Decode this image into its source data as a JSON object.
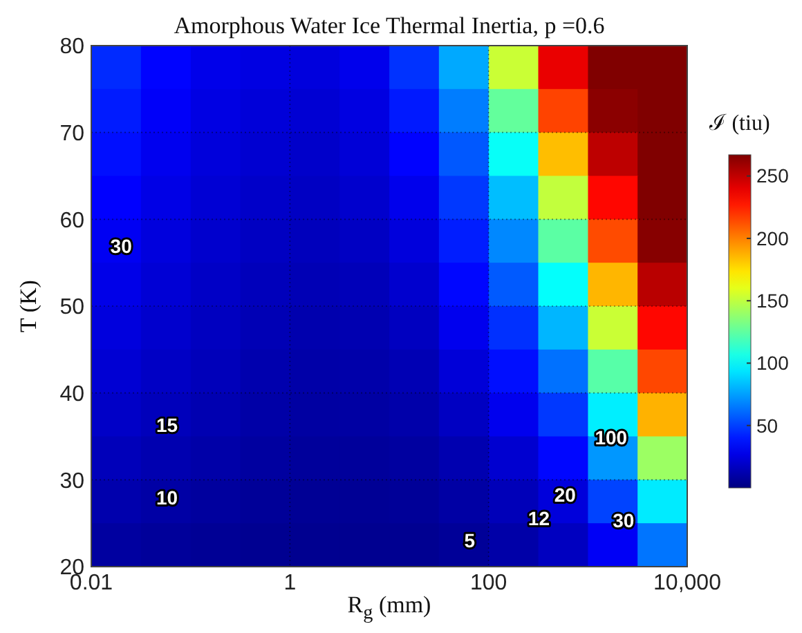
{
  "chart_data": {
    "type": "scatter",
    "title": "Amorphous Water Ice Thermal Inertia, p =0.6",
    "xlabel": "R$_{g}$ (mm)",
    "ylabel": "T (K)",
    "clabel": "ℐ (tiu)",
    "log": "x",
    "xlim": [
      0.01,
      10000
    ],
    "xticks": [
      0.01,
      1,
      100,
      {
        "value": 10000,
        "label": "10,000"
      }
    ],
    "ylim": [
      20,
      80
    ],
    "yticks": [
      20,
      30,
      40,
      50,
      60,
      70,
      80
    ],
    "grid": true,
    "marker": "square",
    "clim": [
      0,
      267
    ],
    "cticks": [
      50,
      100,
      150,
      200,
      250
    ],
    "annotations": [
      "30",
      "15",
      "10",
      "5",
      "12",
      "20",
      "30",
      "100"
    ],
    "x": [
      0.0178,
      0.0562,
      0.178,
      0.562,
      1.78,
      5.62,
      17.8,
      56.2,
      178,
      562,
      1780,
      5620,
      0.0178,
      0.0562,
      0.178,
      0.562,
      1.78,
      5.62,
      17.8,
      56.2,
      178,
      562,
      1780,
      5620,
      0.0178,
      0.0562,
      0.178,
      0.562,
      1.78,
      5.62,
      17.8,
      56.2,
      178,
      562,
      1780,
      5620,
      0.0178,
      0.0562,
      0.178,
      0.562,
      1.78,
      5.62,
      17.8,
      56.2,
      178,
      562,
      1780,
      5620,
      0.0178,
      0.0562,
      0.178,
      0.562,
      1.78,
      5.62,
      17.8,
      56.2,
      178,
      562,
      1780,
      5620,
      0.0178,
      0.0562,
      0.178,
      0.562,
      1.78,
      5.62,
      17.8,
      56.2,
      178,
      562,
      1780,
      5620,
      0.0178,
      0.0562,
      0.178,
      0.562,
      1.78,
      5.62,
      17.8,
      56.2,
      178,
      562,
      1780,
      5620,
      0.0178,
      0.0562,
      0.178,
      0.562,
      1.78,
      5.62,
      17.8,
      56.2,
      178,
      562,
      1780,
      5620,
      0.0178,
      0.0562,
      0.178,
      0.562,
      1.78,
      5.62,
      17.8,
      56.2,
      178,
      562,
      1780,
      5620,
      0.0178,
      0.0562,
      0.178,
      0.562,
      1.78,
      5.62,
      17.8,
      56.2,
      178,
      562,
      1780,
      5620,
      0.0178,
      0.0562,
      0.178,
      0.562,
      1.78,
      5.62,
      17.8,
      56.2,
      178,
      562,
      1780,
      5620,
      0.0178,
      0.0562,
      0.178,
      0.562,
      1.78,
      5.62,
      17.8,
      56.2,
      178,
      562,
      1780,
      5620
    ],
    "values": [
      77.5,
      77.5,
      77.5,
      77.5,
      77.5,
      77.5,
      77.5,
      77.5,
      77.5,
      77.5,
      77.5,
      77.5,
      72.5,
      72.5,
      72.5,
      72.5,
      72.5,
      72.5,
      72.5,
      72.5,
      72.5,
      72.5,
      72.5,
      72.5,
      67.5,
      67.5,
      67.5,
      67.5,
      67.5,
      67.5,
      67.5,
      67.5,
      67.5,
      67.5,
      67.5,
      67.5,
      62.5,
      62.5,
      62.5,
      62.5,
      62.5,
      62.5,
      62.5,
      62.5,
      62.5,
      62.5,
      62.5,
      62.5,
      57.5,
      57.5,
      57.5,
      57.5,
      57.5,
      57.5,
      57.5,
      57.5,
      57.5,
      57.5,
      57.5,
      57.5,
      52.5,
      52.5,
      52.5,
      52.5,
      52.5,
      52.5,
      52.5,
      52.5,
      52.5,
      52.5,
      52.5,
      52.5,
      47.5,
      47.5,
      47.5,
      47.5,
      47.5,
      47.5,
      47.5,
      47.5,
      47.5,
      47.5,
      47.5,
      47.5,
      42.5,
      42.5,
      42.5,
      42.5,
      42.5,
      42.5,
      42.5,
      42.5,
      42.5,
      42.5,
      42.5,
      42.5,
      37.5,
      37.5,
      37.5,
      37.5,
      37.5,
      37.5,
      37.5,
      37.5,
      37.5,
      37.5,
      37.5,
      37.5,
      32.5,
      32.5,
      32.5,
      32.5,
      32.5,
      32.5,
      32.5,
      32.5,
      32.5,
      32.5,
      32.5,
      32.5,
      27.5,
      27.5,
      27.5,
      27.5,
      27.5,
      27.5,
      27.5,
      27.5,
      27.5,
      27.5,
      27.5,
      27.5,
      22.5,
      22.5,
      22.5,
      22.5,
      22.5,
      22.5,
      22.5,
      22.5,
      22.5,
      22.5,
      22.5,
      22.5
    ],
    "cvalues": [
      44.3,
      34.1,
      27.9,
      25.8,
      24.4,
      28.4,
      46.5,
      77.5,
      153,
      239,
      267,
      267,
      40.5,
      31.8,
      26,
      23.4,
      21.8,
      25.4,
      40,
      66,
      126,
      216,
      264,
      267,
      37,
      29.3,
      24,
      21.3,
      19.6,
      22.9,
      34,
      56.5,
      102,
      184,
      251,
      267,
      33.5,
      26.8,
      22,
      19.3,
      17.7,
      20.3,
      28.4,
      48,
      83,
      151,
      232,
      267,
      30.3,
      24.4,
      20.2,
      17.4,
      15.8,
      17.7,
      24.1,
      41,
      69,
      124,
      214,
      265,
      27.4,
      22.3,
      18.5,
      15.7,
      13.9,
      15.1,
      20.5,
      35,
      57,
      101,
      186,
      252,
      24.6,
      20.3,
      17,
      14,
      12.1,
      12.9,
      16.8,
      29,
      46,
      81,
      153,
      232,
      21.8,
      18.1,
      15.2,
      12.3,
      10.5,
      11,
      13.7,
      23.1,
      37,
      63,
      123,
      215,
      18.6,
      15.6,
      13,
      10.4,
      9,
      9.2,
      11,
      17.5,
      29,
      48,
      96,
      187,
      15.3,
      12.7,
      10.5,
      8.5,
      7.3,
      7.3,
      8.6,
      12.8,
      21,
      35,
      73,
      141,
      11.9,
      9.8,
      8,
      6.5,
      5.5,
      5.5,
      6.3,
      9.5,
      15,
      24,
      51,
      95,
      8.5,
      7,
      5.7,
      4.7,
      4.2,
      4.2,
      4.6,
      6.5,
      10.5,
      17,
      31,
      64
    ]
  }
}
